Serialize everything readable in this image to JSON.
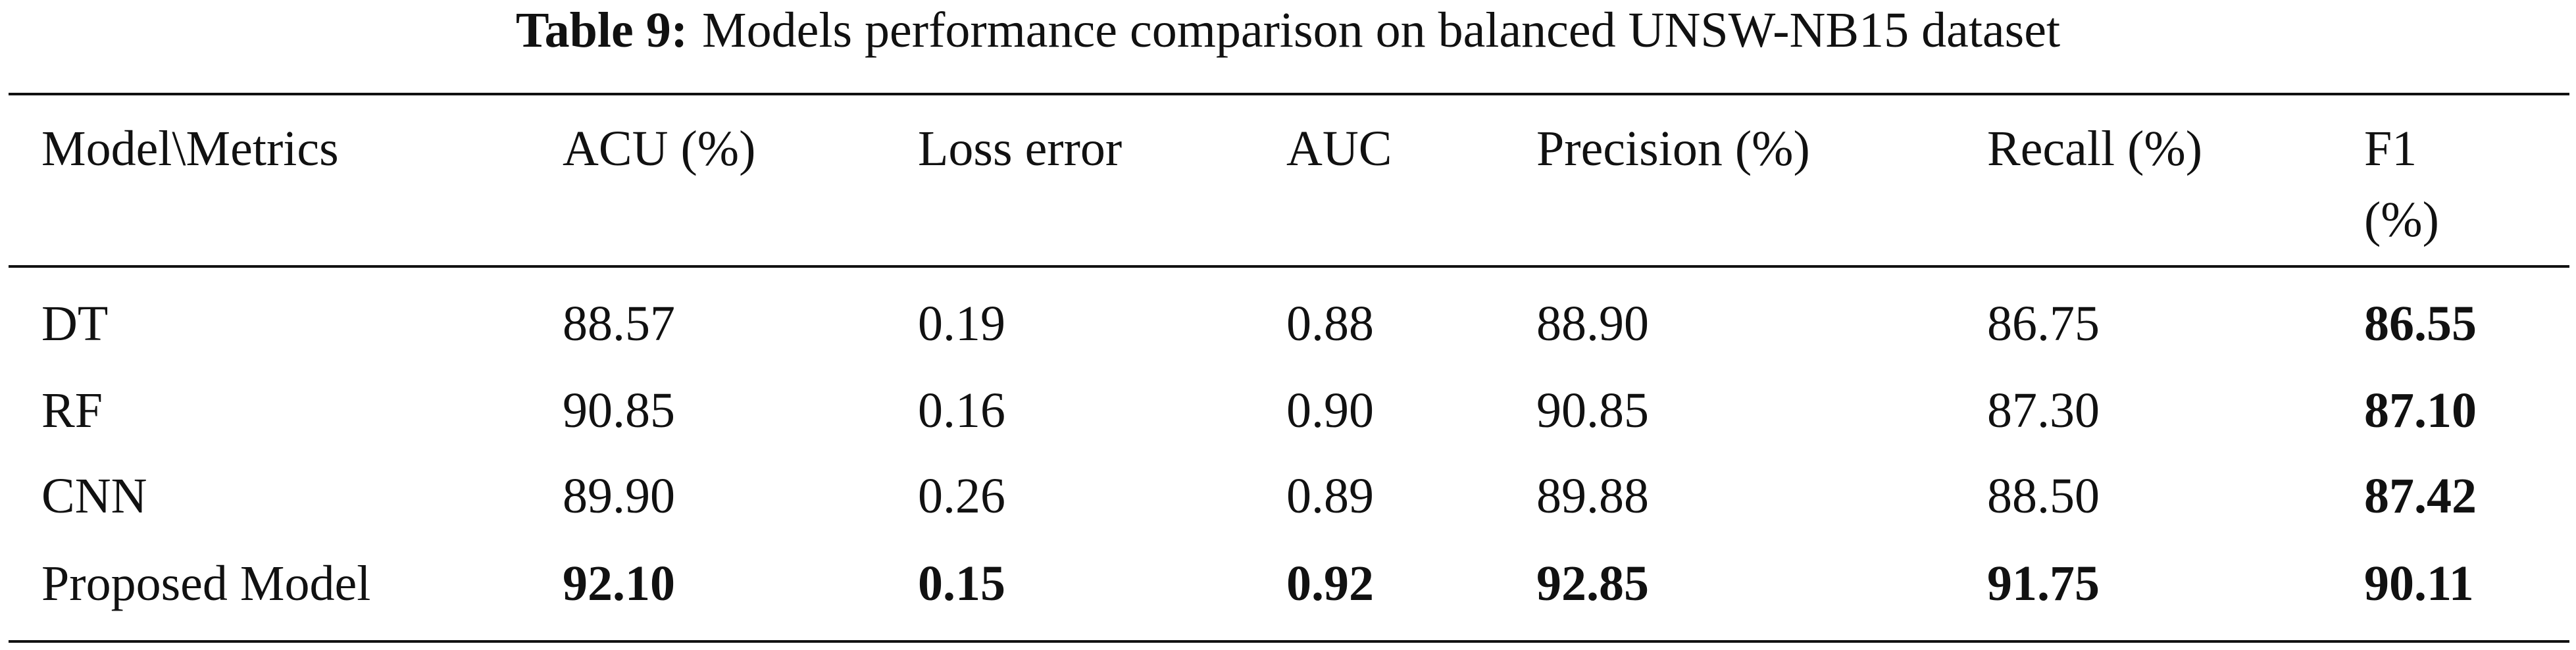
{
  "caption": {
    "label": "Table 9:",
    "text": "Models performance comparison on balanced UNSW-NB15 dataset"
  },
  "table": {
    "header": [
      "Model\\Metrics",
      "ACU (%)",
      "Loss error",
      "AUC",
      "Precision (%)",
      "Recall (%)",
      "F1 (%)"
    ],
    "rows": [
      [
        "DT",
        "88.57",
        "0.19",
        "0.88",
        "88.90",
        "86.75",
        "86.55"
      ],
      [
        "RF",
        "90.85",
        "0.16",
        "0.90",
        "90.85",
        "87.30",
        "87.10"
      ],
      [
        "CNN",
        "89.90",
        "0.26",
        "0.89",
        "89.88",
        "88.50",
        "87.42"
      ],
      [
        "Proposed Model",
        "92.10",
        "0.15",
        "0.92",
        "92.85",
        "91.75",
        "90.11"
      ]
    ]
  }
}
